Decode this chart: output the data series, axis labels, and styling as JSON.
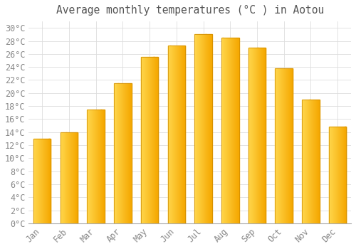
{
  "title": "Average monthly temperatures (°C ) in Aotou",
  "months": [
    "Jan",
    "Feb",
    "Mar",
    "Apr",
    "May",
    "Jun",
    "Jul",
    "Aug",
    "Sep",
    "Oct",
    "Nov",
    "Dec"
  ],
  "temperatures": [
    13,
    14,
    17.5,
    21.5,
    25.5,
    27.3,
    29,
    28.5,
    27,
    23.8,
    19,
    14.8
  ],
  "bar_color_left": "#FFD84D",
  "bar_color_right": "#F5A800",
  "background_color": "#FFFFFF",
  "plot_bg_color": "#FFFFFF",
  "ylim": [
    0,
    31
  ],
  "ytick_step": 2,
  "grid_color": "#DDDDDD",
  "title_fontsize": 10.5,
  "tick_fontsize": 8.5,
  "bar_width": 0.65
}
